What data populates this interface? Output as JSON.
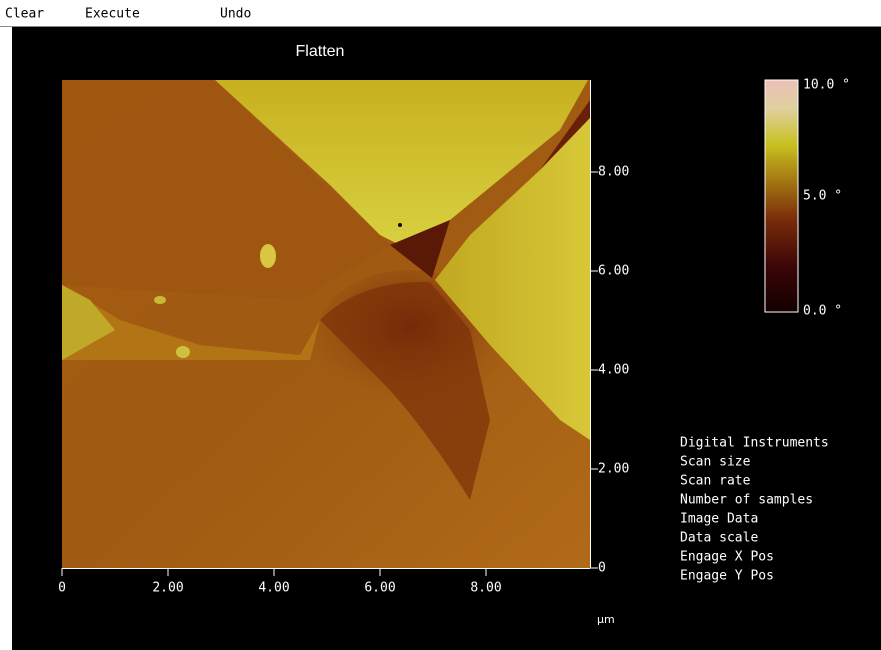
{
  "menu": [
    "Clear",
    "Execute",
    "Undo"
  ],
  "title": "Flatten",
  "x_axis": {
    "ticks": [
      "0",
      "2.00",
      "4.00",
      "6.00",
      "8.00"
    ],
    "unit": "µm"
  },
  "y_axis": {
    "ticks": [
      "0",
      "2.00",
      "4.00",
      "6.00",
      "8.00"
    ]
  },
  "color_scale": {
    "labels": [
      "10.0 °",
      "5.0 °",
      "0.0 °"
    ]
  },
  "info": [
    "Digital Instruments",
    "Scan size",
    "Scan rate",
    "Number of samples",
    "Image Data",
    "Data scale",
    "Engage X Pos",
    "Engage Y Pos"
  ]
}
